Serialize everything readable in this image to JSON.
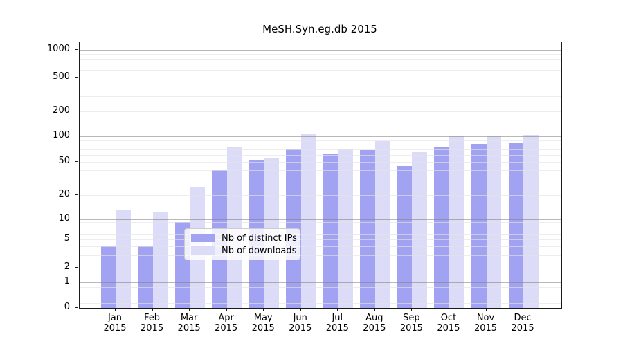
{
  "title": "MeSH.Syn.eg.db 2015",
  "chart_data": {
    "type": "bar",
    "title": "MeSH.Syn.eg.db 2015",
    "categories": [
      "Jan 2015",
      "Feb 2015",
      "Mar 2015",
      "Apr 2015",
      "May 2015",
      "Jun 2015",
      "Jul 2015",
      "Aug 2015",
      "Sep 2015",
      "Oct 2015",
      "Nov 2015",
      "Dec 2015"
    ],
    "month_labels": [
      {
        "month": "Jan",
        "year": "2015"
      },
      {
        "month": "Feb",
        "year": "2015"
      },
      {
        "month": "Mar",
        "year": "2015"
      },
      {
        "month": "Apr",
        "year": "2015"
      },
      {
        "month": "May",
        "year": "2015"
      },
      {
        "month": "Jun",
        "year": "2015"
      },
      {
        "month": "Jul",
        "year": "2015"
      },
      {
        "month": "Aug",
        "year": "2015"
      },
      {
        "month": "Sep",
        "year": "2015"
      },
      {
        "month": "Oct",
        "year": "2015"
      },
      {
        "month": "Nov",
        "year": "2015"
      },
      {
        "month": "Dec",
        "year": "2015"
      }
    ],
    "series": [
      {
        "name": "Nb of distinct IPs",
        "color": "#a2a2f2",
        "values": [
          4,
          4,
          9,
          40,
          53,
          72,
          62,
          69,
          45,
          75,
          81,
          85
        ]
      },
      {
        "name": "Nb of downloads",
        "color": "#dcdcf8",
        "values": [
          13,
          12,
          25,
          74,
          55,
          107,
          72,
          87,
          66,
          100,
          101,
          103
        ]
      }
    ],
    "yscale": "log-like (linear below 1)",
    "ytick_values": [
      0,
      1,
      2,
      5,
      10,
      20,
      50,
      100,
      200,
      500,
      1000
    ],
    "ytick_labels": [
      "0",
      "1",
      "2",
      "5",
      "10",
      "20",
      "50",
      "100",
      "200",
      "500",
      "1000"
    ],
    "ylim": [
      0,
      1400
    ],
    "xlabel": "",
    "ylabel": "",
    "grid": "horizontal major and minor",
    "legend_position": "lower center"
  },
  "legend": {
    "items": [
      {
        "label": "Nb of distinct IPs",
        "color": "#a2a2f2"
      },
      {
        "label": "Nb of downloads",
        "color": "#dcdcf8"
      }
    ]
  },
  "colors": {
    "bar_distinct_ips": "#a2a2f2",
    "bar_downloads": "#dcdcf8",
    "grid_major": "#9a9a9a",
    "grid_minor": "#e4e4e4",
    "spine": "#1a1a1a",
    "text": "#000000"
  }
}
